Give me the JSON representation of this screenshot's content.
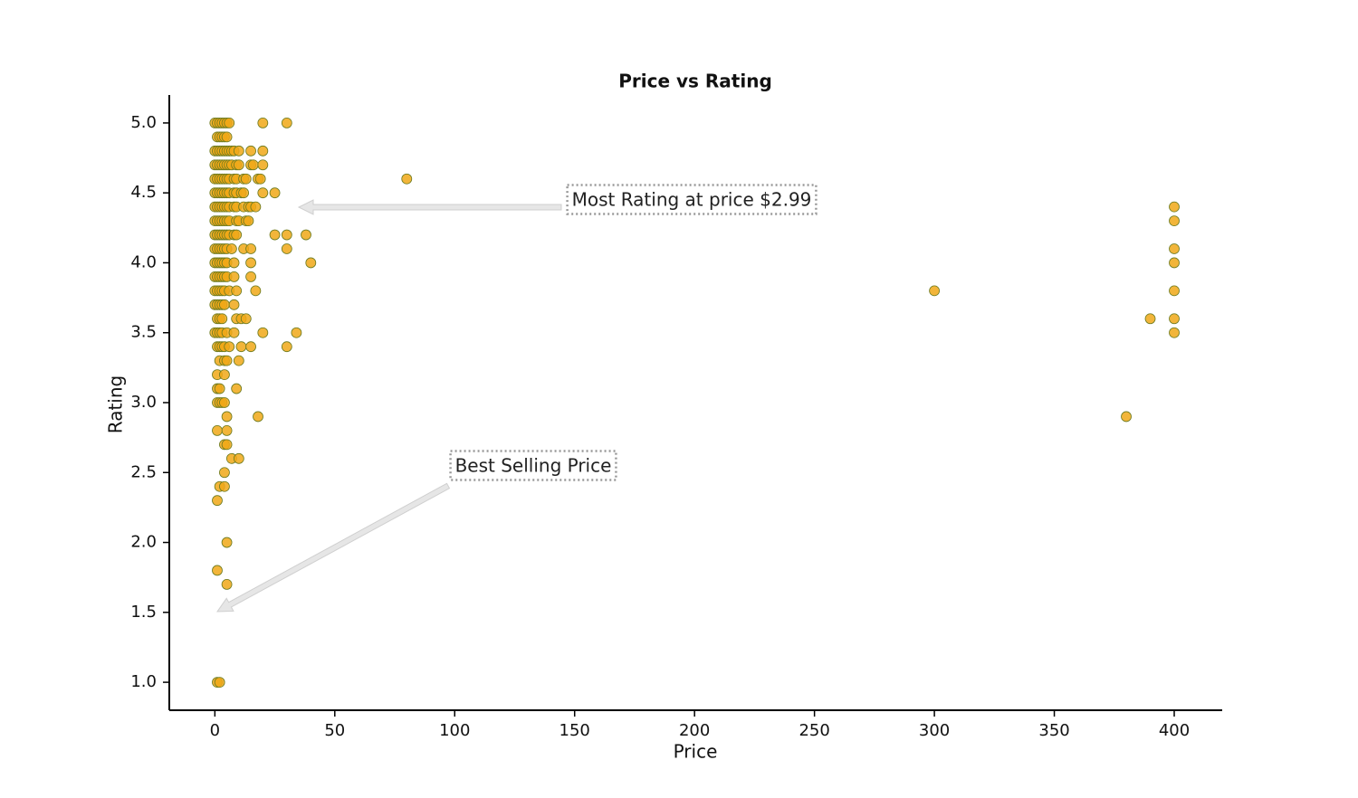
{
  "chart_data": {
    "type": "scatter",
    "title": "Price vs Rating",
    "x_label": "Price",
    "y_label": "Rating",
    "color": "#f0a818",
    "edge_color": "#6b7a1f",
    "annotations": [
      "Most Rating at price $2.99",
      "Best Selling Price"
    ],
    "xlim": [
      -19,
      420
    ],
    "ylim": [
      0.8,
      5.2
    ],
    "xticks": [
      0,
      50,
      100,
      150,
      200,
      250,
      300,
      350,
      400
    ],
    "yticks": [
      {
        "value": 1,
        "label": "1.0"
      },
      1.5,
      {
        "value": 2,
        "label": "2.0"
      },
      2.5,
      {
        "value": 3,
        "label": "3.0"
      },
      3.5,
      {
        "value": 4,
        "label": "4.0"
      },
      4.5,
      {
        "value": 5,
        "label": "5.0"
      }
    ],
    "x": [
      0,
      1,
      2,
      3,
      4,
      5,
      6,
      20,
      30,
      1,
      2,
      3,
      4,
      5,
      0,
      1,
      2,
      3,
      4,
      5,
      6,
      7,
      8,
      10,
      15,
      20,
      0,
      1,
      2,
      3,
      4,
      5,
      6,
      7,
      9,
      10,
      15,
      16,
      20,
      0,
      1,
      2,
      3,
      4,
      5,
      6,
      8,
      9,
      12,
      13,
      18,
      19,
      80,
      0,
      1,
      2,
      3,
      4,
      5,
      6,
      8,
      9,
      11,
      12,
      20,
      25,
      0,
      1,
      2,
      3,
      4,
      5,
      6,
      8,
      9,
      12,
      14,
      15,
      17,
      400,
      0,
      1,
      2,
      3,
      4,
      5,
      6,
      9,
      10,
      13,
      14,
      400,
      0,
      1,
      2,
      3,
      4,
      5,
      6,
      8,
      9,
      25,
      30,
      38,
      0,
      1,
      2,
      3,
      4,
      5,
      7,
      12,
      15,
      30,
      400,
      0,
      1,
      2,
      3,
      4,
      5,
      8,
      15,
      40,
      400,
      0,
      1,
      2,
      3,
      4,
      5,
      8,
      15,
      0,
      1,
      2,
      3,
      4,
      6,
      9,
      17,
      300,
      400,
      0,
      1,
      2,
      3,
      4,
      8,
      1,
      2,
      3,
      9,
      11,
      13,
      390,
      400,
      0,
      1,
      2,
      3,
      5,
      8,
      20,
      34,
      400,
      1,
      2,
      3,
      4,
      6,
      11,
      15,
      30,
      2,
      4,
      5,
      10,
      1,
      4,
      1,
      2,
      9,
      1,
      2,
      3,
      4,
      5,
      18,
      380,
      1,
      5,
      4,
      5,
      7,
      10,
      4,
      2,
      4,
      1,
      5,
      1,
      5,
      1,
      2
    ],
    "values": [
      5,
      5,
      5,
      5,
      5,
      5,
      5,
      5,
      5,
      4.9,
      4.9,
      4.9,
      4.9,
      4.9,
      4.8,
      4.8,
      4.8,
      4.8,
      4.8,
      4.8,
      4.8,
      4.8,
      4.8,
      4.8,
      4.8,
      4.8,
      4.7,
      4.7,
      4.7,
      4.7,
      4.7,
      4.7,
      4.7,
      4.7,
      4.7,
      4.7,
      4.7,
      4.7,
      4.7,
      4.6,
      4.6,
      4.6,
      4.6,
      4.6,
      4.6,
      4.6,
      4.6,
      4.6,
      4.6,
      4.6,
      4.6,
      4.6,
      4.6,
      4.5,
      4.5,
      4.5,
      4.5,
      4.5,
      4.5,
      4.5,
      4.5,
      4.5,
      4.5,
      4.5,
      4.5,
      4.5,
      4.4,
      4.4,
      4.4,
      4.4,
      4.4,
      4.4,
      4.4,
      4.4,
      4.4,
      4.4,
      4.4,
      4.4,
      4.4,
      4.4,
      4.3,
      4.3,
      4.3,
      4.3,
      4.3,
      4.3,
      4.3,
      4.3,
      4.3,
      4.3,
      4.3,
      4.3,
      4.2,
      4.2,
      4.2,
      4.2,
      4.2,
      4.2,
      4.2,
      4.2,
      4.2,
      4.2,
      4.2,
      4.2,
      4.1,
      4.1,
      4.1,
      4.1,
      4.1,
      4.1,
      4.1,
      4.1,
      4.1,
      4.1,
      4.1,
      4,
      4,
      4,
      4,
      4,
      4,
      4,
      4,
      4,
      4,
      3.9,
      3.9,
      3.9,
      3.9,
      3.9,
      3.9,
      3.9,
      3.9,
      3.8,
      3.8,
      3.8,
      3.8,
      3.8,
      3.8,
      3.8,
      3.8,
      3.8,
      3.8,
      3.7,
      3.7,
      3.7,
      3.7,
      3.7,
      3.7,
      3.6,
      3.6,
      3.6,
      3.6,
      3.6,
      3.6,
      3.6,
      3.6,
      3.5,
      3.5,
      3.5,
      3.5,
      3.5,
      3.5,
      3.5,
      3.5,
      3.5,
      3.4,
      3.4,
      3.4,
      3.4,
      3.4,
      3.4,
      3.4,
      3.4,
      3.3,
      3.3,
      3.3,
      3.3,
      3.2,
      3.2,
      3.1,
      3.1,
      3.1,
      3,
      3,
      3,
      3,
      2.9,
      2.9,
      2.9,
      2.8,
      2.8,
      2.7,
      2.7,
      2.6,
      2.6,
      2.5,
      2.4,
      2.4,
      2.3,
      2,
      1.8,
      1.7,
      1,
      1
    ]
  }
}
